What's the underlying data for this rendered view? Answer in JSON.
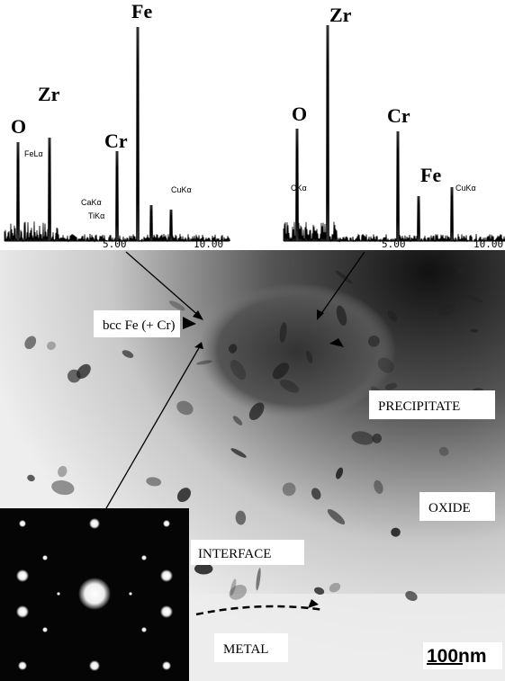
{
  "spectra": [
    {
      "peak_labels": [
        "O",
        "Zr",
        "Cr",
        "Fe"
      ],
      "line_labels": [
        "FeLα",
        "CaKα",
        "TiKα",
        "CuKα"
      ],
      "ticks": [
        "5.00",
        "10.00"
      ]
    },
    {
      "peak_labels": [
        "O",
        "Zr",
        "Cr",
        "Fe"
      ],
      "line_labels": [
        "CKα",
        "CuKα"
      ],
      "ticks": [
        "5.00",
        "10.00"
      ]
    }
  ],
  "micrograph": {
    "labels": [
      "bcc Fe (+ Cr)",
      "PRECIPITATE",
      "OXIDE",
      "INTERFACE",
      "METAL"
    ],
    "scale_bar": "100nm"
  }
}
